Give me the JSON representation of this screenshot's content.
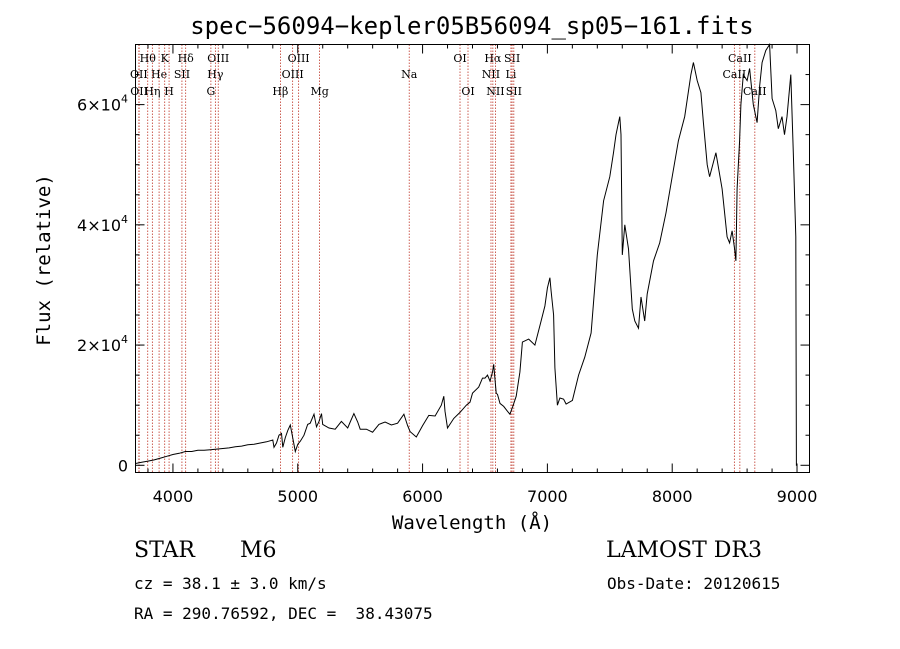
{
  "chart_data": {
    "type": "line",
    "title": "spec−56094−kepler05B56094_sp05−161.fits",
    "xlabel": "Wavelength (Å)",
    "ylabel": "Flux (relative)",
    "xlim": [
      3700,
      9100
    ],
    "ylim": [
      -1200,
      70000
    ],
    "x_ticks": [
      4000,
      5000,
      6000,
      7000,
      8000,
      9000
    ],
    "x_tick_labels": [
      "4000",
      "5000",
      "6000",
      "7000",
      "8000",
      "9000"
    ],
    "y_ticks": [
      {
        "value": 0,
        "base": "0",
        "exp": ""
      },
      {
        "value": 20000,
        "base": "2×10",
        "exp": "4"
      },
      {
        "value": 40000,
        "base": "4×10",
        "exp": "4"
      },
      {
        "value": 60000,
        "base": "6×10",
        "exp": "4"
      }
    ],
    "series": [
      {
        "name": "spectrum",
        "x": [
          3700,
          3750,
          3800,
          3850,
          3900,
          3950,
          4000,
          4050,
          4100,
          4150,
          4200,
          4250,
          4300,
          4350,
          4400,
          4450,
          4500,
          4550,
          4600,
          4650,
          4700,
          4750,
          4800,
          4810,
          4830,
          4850,
          4870,
          4880,
          4900,
          4920,
          4940,
          4960,
          4980,
          5000,
          5020,
          5050,
          5080,
          5100,
          5130,
          5150,
          5170,
          5190,
          5200,
          5250,
          5300,
          5350,
          5400,
          5420,
          5450,
          5480,
          5500,
          5550,
          5600,
          5650,
          5700,
          5750,
          5800,
          5850,
          5880,
          5900,
          5950,
          6000,
          6050,
          6100,
          6150,
          6170,
          6180,
          6200,
          6250,
          6300,
          6350,
          6380,
          6400,
          6450,
          6480,
          6500,
          6520,
          6540,
          6560,
          6570,
          6590,
          6600,
          6620,
          6650,
          6680,
          6700,
          6720,
          6750,
          6780,
          6800,
          6850,
          6900,
          6950,
          6980,
          7000,
          7020,
          7030,
          7050,
          7060,
          7080,
          7100,
          7130,
          7150,
          7200,
          7250,
          7300,
          7350,
          7400,
          7450,
          7500,
          7530,
          7550,
          7570,
          7580,
          7590,
          7600,
          7620,
          7650,
          7680,
          7700,
          7730,
          7750,
          7780,
          7800,
          7850,
          7900,
          7950,
          8000,
          8050,
          8100,
          8150,
          8170,
          8200,
          8230,
          8250,
          8280,
          8300,
          8350,
          8400,
          8420,
          8440,
          8460,
          8480,
          8500,
          8510,
          8520,
          8540,
          8550,
          8570,
          8600,
          8620,
          8650,
          8680,
          8700,
          8720,
          8750,
          8780,
          8800,
          8830,
          8850,
          8880,
          8900,
          8920,
          8950,
          8970,
          8990,
          8995,
          9000
        ],
        "y": [
          300,
          500,
          700,
          900,
          1200,
          1500,
          1800,
          2000,
          2300,
          2300,
          2500,
          2500,
          2600,
          2700,
          2800,
          2900,
          3100,
          3200,
          3400,
          3500,
          3700,
          3900,
          4200,
          3000,
          3700,
          5000,
          5300,
          3000,
          4600,
          5800,
          6700,
          4500,
          2300,
          3500,
          4000,
          5000,
          6800,
          7000,
          8500,
          6400,
          7300,
          8600,
          6800,
          6200,
          6000,
          7300,
          6200,
          7200,
          8600,
          7200,
          6000,
          6000,
          5500,
          6800,
          7200,
          6700,
          7000,
          8500,
          6600,
          5600,
          4700,
          6600,
          8300,
          8200,
          10000,
          11500,
          9000,
          6200,
          7800,
          8800,
          10000,
          10500,
          12000,
          13000,
          14500,
          14500,
          15000,
          14000,
          15500,
          16800,
          12000,
          11800,
          10300,
          9800,
          9000,
          8500,
          9600,
          11500,
          15500,
          20500,
          21000,
          20000,
          24000,
          26500,
          29500,
          31200,
          29000,
          25000,
          16200,
          10000,
          11200,
          11000,
          10200,
          10800,
          15000,
          18000,
          22000,
          35000,
          44000,
          48000,
          52000,
          55000,
          57000,
          58000,
          55000,
          35000,
          40000,
          36000,
          26000,
          24000,
          22800,
          28000,
          24000,
          28500,
          34000,
          37000,
          42000,
          48000,
          54000,
          58000,
          65000,
          67000,
          64000,
          62000,
          57000,
          50000,
          48000,
          52000,
          46000,
          42000,
          38000,
          37000,
          39000,
          36000,
          34000,
          46000,
          54000,
          60000,
          65000,
          64000,
          66000,
          60000,
          57000,
          63000,
          67000,
          69000,
          70000,
          61000,
          59000,
          56000,
          58000,
          55000,
          58000,
          65000,
          52000,
          38000,
          0,
          0
        ]
      }
    ],
    "line_markers": [
      {
        "label": "Hθ",
        "x": 3798,
        "row": 1
      },
      {
        "label": "OII",
        "x": 3727,
        "row": 2
      },
      {
        "label": "OII",
        "x": 3729,
        "row": 3
      },
      {
        "label": "He",
        "x": 3889,
        "row": 2
      },
      {
        "label": "Hη",
        "x": 3835,
        "row": 3
      },
      {
        "label": "K",
        "x": 3934,
        "row": 1
      },
      {
        "label": "H",
        "x": 3969,
        "row": 3
      },
      {
        "label": "SII",
        "x": 4072,
        "row": 2
      },
      {
        "label": "Hδ",
        "x": 4102,
        "row": 1
      },
      {
        "label": "OIII",
        "x": 4363,
        "row": 1
      },
      {
        "label": "Hγ",
        "x": 4340,
        "row": 2
      },
      {
        "label": "G",
        "x": 4304,
        "row": 3
      },
      {
        "label": "Hβ",
        "x": 4861,
        "row": 3
      },
      {
        "label": "OIII",
        "x": 5007,
        "row": 1
      },
      {
        "label": "OIII",
        "x": 4959,
        "row": 2
      },
      {
        "label": "Mg",
        "x": 5175,
        "row": 3
      },
      {
        "label": "Na",
        "x": 5893,
        "row": 2
      },
      {
        "label": "OI",
        "x": 6300,
        "row": 1
      },
      {
        "label": "OI",
        "x": 6364,
        "row": 3
      },
      {
        "label": "Hα",
        "x": 6563,
        "row": 1
      },
      {
        "label": "NII",
        "x": 6548,
        "row": 2
      },
      {
        "label": "NII",
        "x": 6584,
        "row": 3
      },
      {
        "label": "SII",
        "x": 6717,
        "row": 1
      },
      {
        "label": "Li",
        "x": 6708,
        "row": 2
      },
      {
        "label": "SII",
        "x": 6731,
        "row": 3
      },
      {
        "label": "CaII",
        "x": 8542,
        "row": 1
      },
      {
        "label": "CaII",
        "x": 8498,
        "row": 2
      },
      {
        "label": "CaII",
        "x": 8662,
        "row": 3
      }
    ]
  },
  "info": {
    "class": "STAR",
    "subclass": "M6",
    "survey": "LAMOST DR3",
    "redshift": "cz = 38.1 ± 3.0 km/s",
    "obs_date": "Obs-Date: 20120615",
    "coords": "RA = 290.76592, DEC =  38.43075"
  }
}
